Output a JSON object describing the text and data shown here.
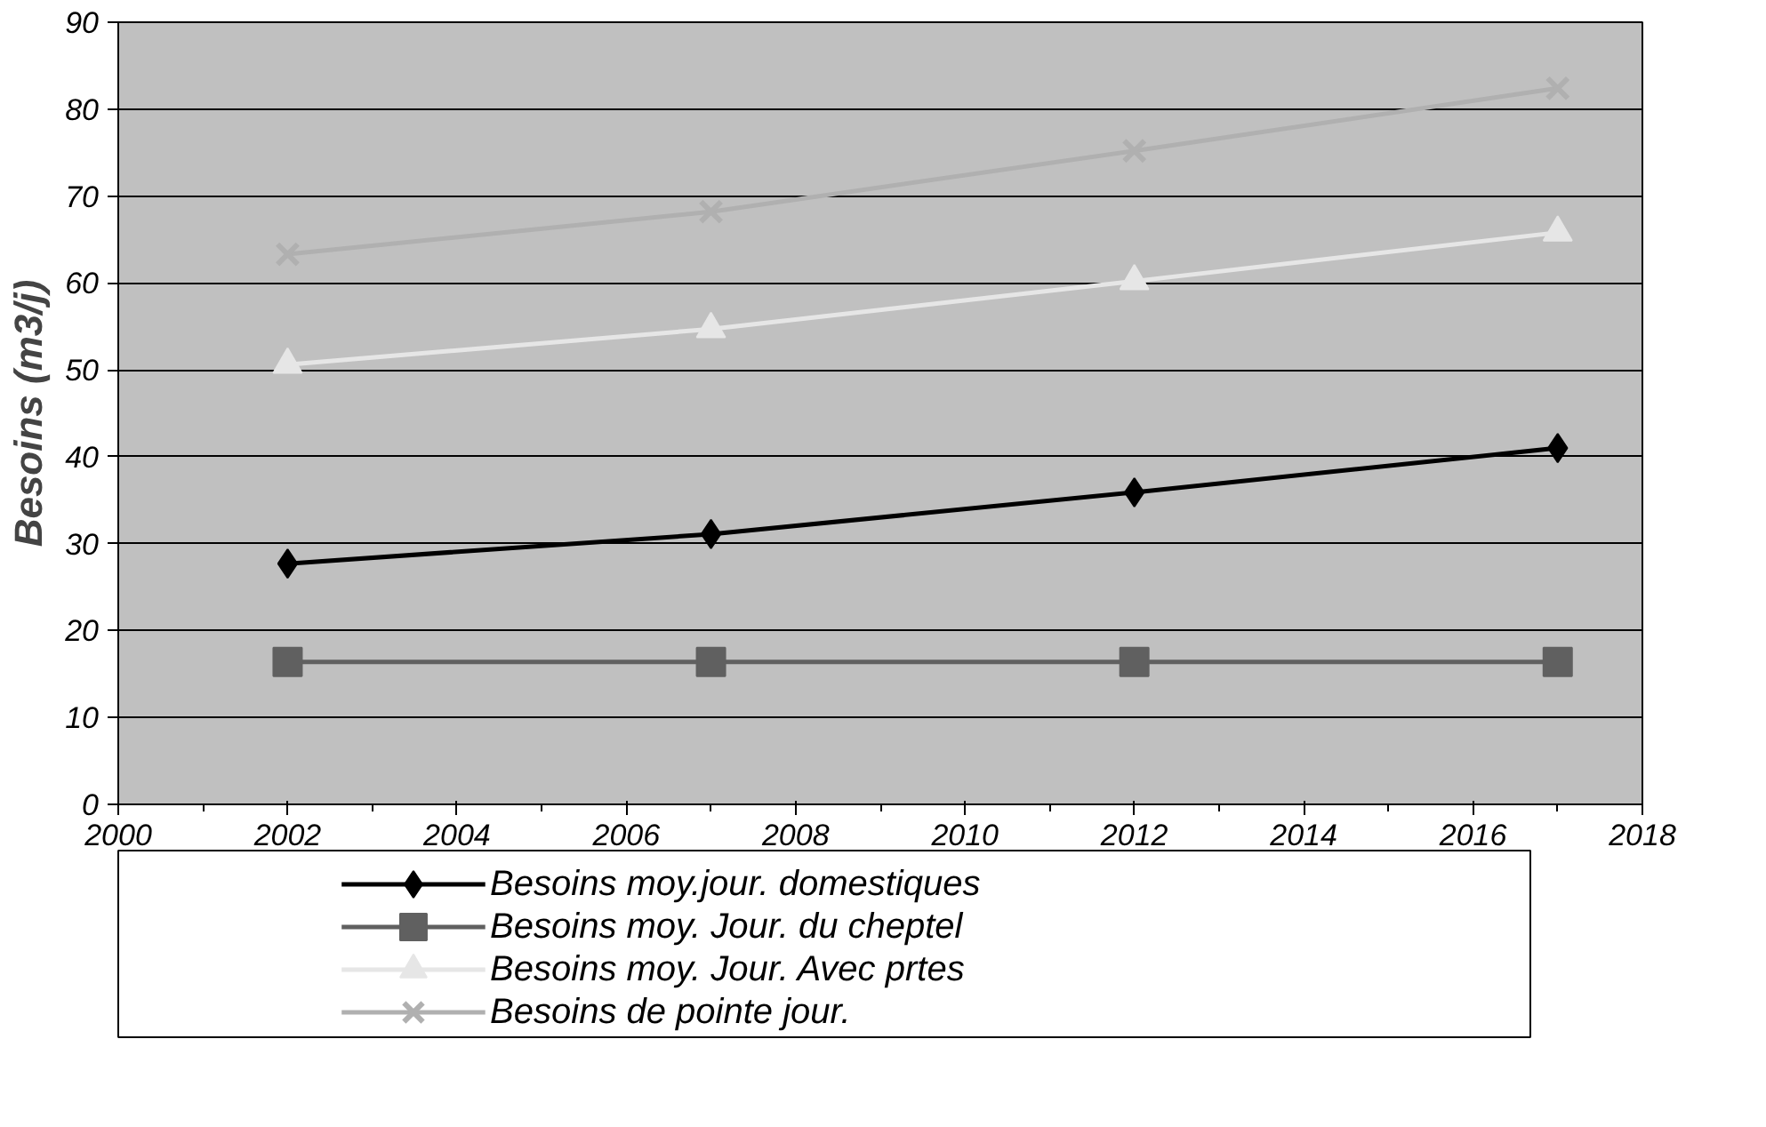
{
  "chart_data": {
    "type": "line",
    "ylabel": "Besoins (m3/j)",
    "x": [
      2002,
      2007,
      2012,
      2017
    ],
    "series": [
      {
        "name": "Besoins moy.jour. domestiques",
        "color": "#000000",
        "marker": "diamond",
        "values": [
          27.7,
          31.1,
          35.9,
          41.0
        ]
      },
      {
        "name": "Besoins moy. Jour. du cheptel",
        "color": "#606060",
        "marker": "square",
        "values": [
          16.4,
          16.4,
          16.4,
          16.4
        ]
      },
      {
        "name": "Besoins moy. Jour. Avec prtes",
        "color": "#e6e6e6",
        "marker": "triangle",
        "values": [
          50.6,
          54.7,
          60.2,
          65.8
        ]
      },
      {
        "name": "Besoins de pointe jour.",
        "color": "#b0b0b0",
        "marker": "cross",
        "values": [
          63.3,
          68.2,
          75.2,
          82.4
        ]
      }
    ],
    "xlim": [
      2000,
      2018
    ],
    "xticks": [
      2000,
      2002,
      2004,
      2006,
      2008,
      2010,
      2012,
      2014,
      2016,
      2018
    ],
    "ylim": [
      0,
      90
    ],
    "yticks": [
      0,
      10,
      20,
      30,
      40,
      50,
      60,
      70,
      80,
      90
    ],
    "grid": "y",
    "legend": "bottom"
  }
}
